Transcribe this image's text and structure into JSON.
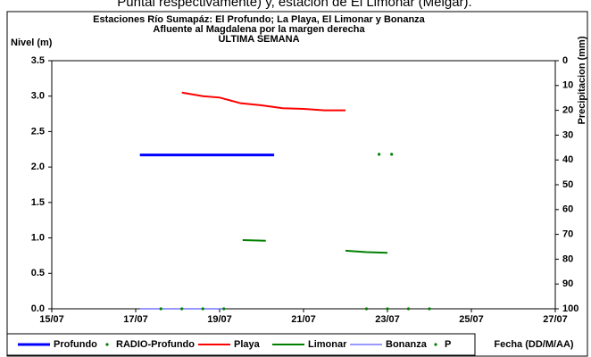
{
  "caption": "Puntal respectivamente) y, estación de El Limonar (Melgar).",
  "chart_data": {
    "type": "line",
    "title": "Estaciones Río Sumapáz: El Profundo; La Playa, El Limonar y Bonanza",
    "subtitle": "Afluente al Magdalena por la margen derecha",
    "subtitle2": "ULTIMA SEMANA",
    "y_label": "Nivel (m)",
    "y2_label": "Precipitacion (mm)",
    "x_label": "Fecha (DD/M/AA)",
    "xlim": [
      15,
      27
    ],
    "xticks": [
      {
        "value": 15,
        "label": "15/07"
      },
      {
        "value": 17,
        "label": "17/07"
      },
      {
        "value": 19,
        "label": "19/07"
      },
      {
        "value": 21,
        "label": "21/07"
      },
      {
        "value": 23,
        "label": "23/07"
      },
      {
        "value": 25,
        "label": "25/07"
      },
      {
        "value": 27,
        "label": "27/07"
      }
    ],
    "ylim": [
      0,
      3.5
    ],
    "yticks": [
      {
        "value": 0,
        "label": "0.0"
      },
      0.5,
      {
        "value": 1,
        "label": "1.0"
      },
      1.5,
      {
        "value": 2,
        "label": "2.0"
      },
      2.5,
      {
        "value": 3,
        "label": "3.0"
      },
      3.5
    ],
    "y2lim": [
      100,
      0
    ],
    "y2_inverted": true,
    "y2ticks": [
      0,
      10,
      20,
      30,
      40,
      50,
      60,
      70,
      80,
      90,
      100
    ],
    "series": [
      {
        "name": "Profundo",
        "color": "#0000ff",
        "width": 3,
        "marker": "line",
        "x": [
          17.1,
          20.3,
          22.1,
          24.7
        ],
        "values": [
          2.17,
          2.17,
          null,
          2.17
        ]
      },
      {
        "name": "RADIO-Profundo",
        "color": "#008000",
        "marker": "dot",
        "x": [
          22.8,
          23.1
        ],
        "values": [
          2.18,
          2.18
        ]
      },
      {
        "name": "Playa",
        "color": "#ff0000",
        "width": 2,
        "marker": "line",
        "x": [
          18.1,
          18.6,
          19.0,
          19.5,
          20.0,
          20.5,
          21.0,
          21.5,
          22.0
        ],
        "values": [
          3.05,
          3.0,
          2.98,
          2.9,
          2.87,
          2.83,
          2.82,
          2.8,
          2.8
        ]
      },
      {
        "name": "Limonar",
        "color": "#008000",
        "width": 2,
        "marker": "line",
        "x": [
          19.55,
          20.1,
          21.5,
          22.0,
          22.5,
          23.0
        ],
        "values": [
          0.97,
          0.96,
          null,
          0.82,
          0.8,
          0.79
        ]
      },
      {
        "name": "Bonanza",
        "color": "#3333ff",
        "width": 1,
        "marker": "line",
        "x": [
          17.1,
          19.1,
          22.5,
          24.6
        ],
        "values": [
          0,
          0,
          null,
          0
        ]
      },
      {
        "name": "P",
        "color": "#008000",
        "marker": "dot",
        "x": [
          17.6,
          18.1,
          18.6,
          19.1,
          22.5,
          23.0,
          23.5,
          24.0
        ],
        "values": [
          0,
          0,
          0,
          0,
          0,
          0,
          0,
          0
        ]
      }
    ]
  }
}
